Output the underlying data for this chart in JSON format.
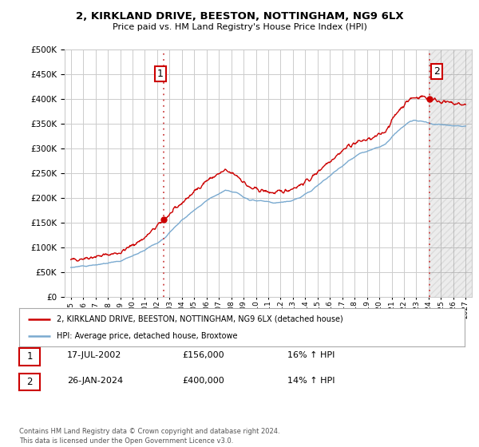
{
  "title": "2, KIRKLAND DRIVE, BEESTON, NOTTINGHAM, NG9 6LX",
  "subtitle": "Price paid vs. HM Land Registry's House Price Index (HPI)",
  "legend_line1": "2, KIRKLAND DRIVE, BEESTON, NOTTINGHAM, NG9 6LX (detached house)",
  "legend_line2": "HPI: Average price, detached house, Broxtowe",
  "transaction1_label": "1",
  "transaction1_date": "17-JUL-2002",
  "transaction1_price": "£156,000",
  "transaction1_hpi": "16% ↑ HPI",
  "transaction2_label": "2",
  "transaction2_date": "26-JAN-2024",
  "transaction2_price": "£400,000",
  "transaction2_hpi": "14% ↑ HPI",
  "footer": "Contains HM Land Registry data © Crown copyright and database right 2024.\nThis data is licensed under the Open Government Licence v3.0.",
  "hpi_color": "#7aaad0",
  "price_color": "#cc0000",
  "vline_color": "#cc4444",
  "background_color": "#ffffff",
  "grid_color": "#cccccc",
  "transaction1_x": 2002.54,
  "transaction2_x": 2024.07,
  "transaction1_y": 156000,
  "transaction2_y": 400000,
  "ylim": [
    0,
    500000
  ],
  "xlim": [
    1994.5,
    2027.5
  ],
  "hatch_start": 2024.07,
  "yticks": [
    0,
    50000,
    100000,
    150000,
    200000,
    250000,
    300000,
    350000,
    400000,
    450000,
    500000
  ],
  "xticks": [
    1995,
    1996,
    1997,
    1998,
    1999,
    2000,
    2001,
    2002,
    2003,
    2004,
    2005,
    2006,
    2007,
    2008,
    2009,
    2010,
    2011,
    2012,
    2013,
    2014,
    2015,
    2016,
    2017,
    2018,
    2019,
    2020,
    2021,
    2022,
    2023,
    2024,
    2025,
    2026,
    2027
  ]
}
